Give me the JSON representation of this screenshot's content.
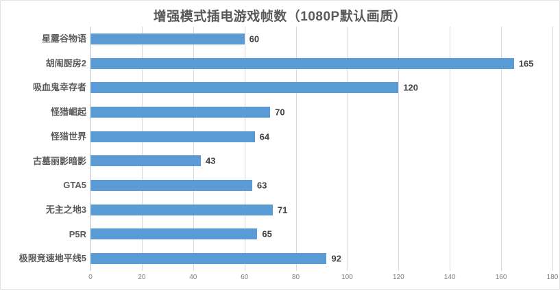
{
  "chart_data": {
    "type": "bar",
    "orientation": "horizontal",
    "title": "增强模式插电游戏帧数（1080P默认画质）",
    "categories": [
      "星露谷物语",
      "胡闹厨房2",
      "吸血鬼幸存者",
      "怪猎崛起",
      "怪猎世界",
      "古墓丽影暗影",
      "GTA5",
      "无主之地3",
      "P5R",
      "极限竞速地平线5"
    ],
    "values": [
      60,
      165,
      120,
      70,
      64,
      43,
      63,
      71,
      65,
      92
    ],
    "xlabel": "",
    "ylabel": "",
    "xlim": [
      0,
      180
    ],
    "x_ticks": [
      0,
      20,
      40,
      60,
      80,
      100,
      120,
      140,
      160,
      180
    ],
    "grid": "vertical-only",
    "legend": "none",
    "data_labels": true,
    "colors": {
      "bar": "#5b9bd5",
      "title": "#595959",
      "category_label": "#595959",
      "value_label": "#404040",
      "tick_label": "#7f7f7f",
      "gridline": "#d9d9d9",
      "axis_line": "#bfbfbf",
      "background": "#ffffff",
      "border": "#e2e2e2"
    }
  }
}
